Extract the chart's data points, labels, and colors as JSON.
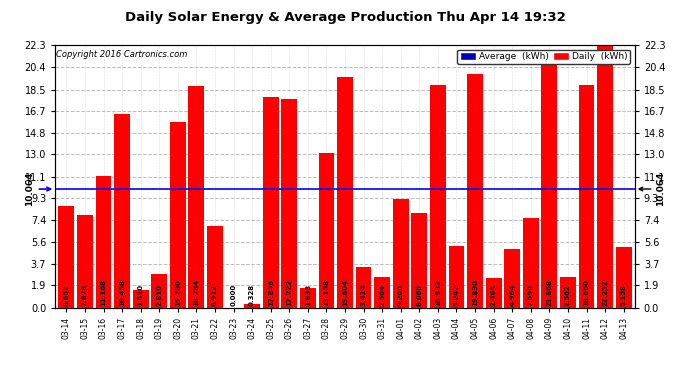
{
  "title": "Daily Solar Energy & Average Production Thu Apr 14 19:32",
  "copyright": "Copyright 2016 Cartronics.com",
  "average_value": 10.064,
  "average_label": "10.064",
  "bar_color": "#FF0000",
  "background_color": "#FFFFFF",
  "plot_bg_color": "#FFFFFF",
  "grid_color": "#BBBBBB",
  "legend_avg_color": "#0000BB",
  "legend_daily_color": "#FF0000",
  "categories": [
    "03-14",
    "03-15",
    "03-16",
    "03-17",
    "03-18",
    "03-19",
    "03-20",
    "03-21",
    "03-22",
    "03-23",
    "03-24",
    "03-25",
    "03-26",
    "03-27",
    "03-28",
    "03-29",
    "03-30",
    "03-31",
    "04-01",
    "04-02",
    "04-03",
    "04-04",
    "04-05",
    "04-06",
    "04-07",
    "04-08",
    "04-09",
    "04-10",
    "04-11",
    "04-12",
    "04-13"
  ],
  "values": [
    8.652,
    7.878,
    11.168,
    16.458,
    1.51,
    2.81,
    15.78,
    18.784,
    6.912,
    0.0,
    0.328,
    17.846,
    17.722,
    1.638,
    13.158,
    19.604,
    3.414,
    2.564,
    9.2,
    8.06,
    18.932,
    5.242,
    19.83,
    2.464,
    4.964,
    7.59,
    21.868,
    2.562,
    18.86,
    22.252,
    5.158
  ],
  "ylim": [
    0.0,
    22.3
  ],
  "yticks": [
    0.0,
    1.9,
    3.7,
    5.6,
    7.4,
    9.3,
    11.1,
    13.0,
    14.8,
    16.7,
    18.5,
    20.4,
    22.3
  ]
}
